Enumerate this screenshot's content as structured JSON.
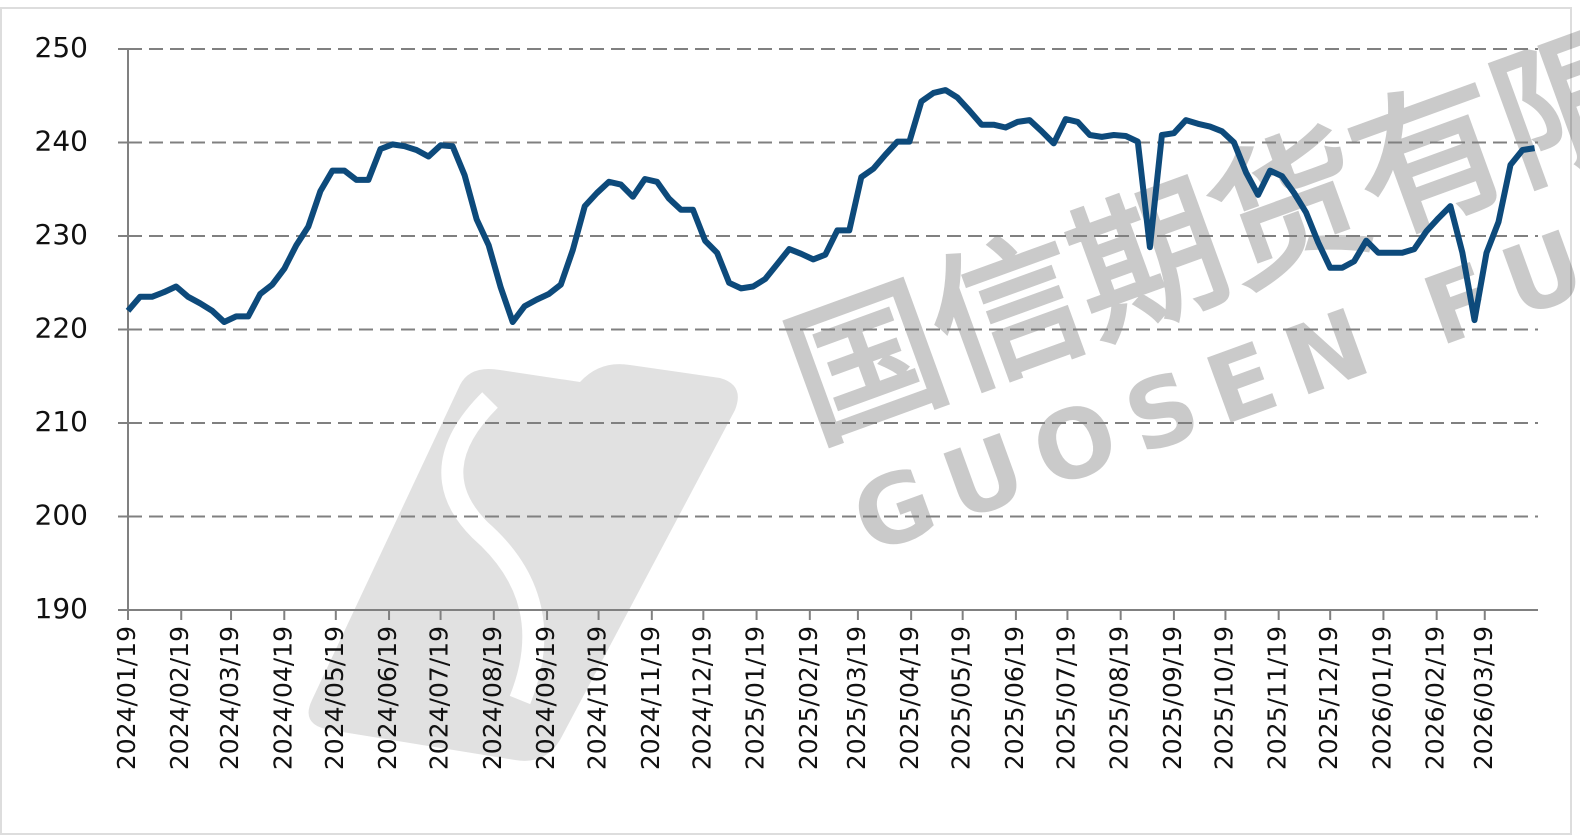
{
  "chart_data": {
    "type": "line",
    "watermark": [
      "国信期货有限",
      "GUOSEN FUTU"
    ],
    "x": [
      "2024/01/19",
      "2024/01/26",
      "2024/02/02",
      "2024/02/09",
      "2024/02/16",
      "2024/02/23",
      "2024/03/01",
      "2024/03/08",
      "2024/03/15",
      "2024/03/22",
      "2024/03/29",
      "2024/04/05",
      "2024/04/12",
      "2024/04/19",
      "2024/04/26",
      "2024/05/03",
      "2024/05/10",
      "2024/05/17",
      "2024/05/24",
      "2024/05/31",
      "2024/06/07",
      "2024/06/14",
      "2024/06/21",
      "2024/06/28",
      "2024/07/05",
      "2024/07/12",
      "2024/07/19",
      "2024/07/26",
      "2024/08/02",
      "2024/08/09",
      "2024/08/16",
      "2024/08/23",
      "2024/08/30",
      "2024/09/06",
      "2024/09/13",
      "2024/09/20",
      "2024/09/27",
      "2024/10/04",
      "2024/10/11",
      "2024/10/18",
      "2024/10/25",
      "2024/11/01",
      "2024/11/08",
      "2024/11/15",
      "2024/11/22",
      "2024/11/29",
      "2024/12/06",
      "2024/12/13",
      "2024/12/20",
      "2024/12/27",
      "2025/01/03",
      "2025/01/10",
      "2025/01/17",
      "2025/01/24",
      "2025/01/31",
      "2025/02/07",
      "2025/02/14",
      "2025/02/21",
      "2025/02/28",
      "2025/03/07",
      "2025/03/14",
      "2025/03/21",
      "2025/03/28",
      "2025/04/04",
      "2025/04/11",
      "2025/04/18",
      "2025/04/25",
      "2025/05/02",
      "2025/05/09",
      "2025/05/16",
      "2025/05/23",
      "2025/05/30",
      "2025/06/06",
      "2025/06/13",
      "2025/06/20",
      "2025/06/27",
      "2025/07/04",
      "2025/07/11",
      "2025/07/18",
      "2025/07/25",
      "2025/08/01",
      "2025/08/08",
      "2025/08/15",
      "2025/08/22",
      "2025/08/29",
      "2025/09/05",
      "2025/09/12",
      "2025/09/19",
      "2025/09/26",
      "2025/10/03",
      "2025/10/10",
      "2025/10/17",
      "2025/10/24",
      "2025/10/31",
      "2025/11/07",
      "2025/11/14",
      "2025/11/21",
      "2025/11/28",
      "2025/12/05",
      "2025/12/12",
      "2025/12/19",
      "2025/12/26",
      "2026/01/02",
      "2026/01/09",
      "2026/01/16",
      "2026/01/23",
      "2026/01/30",
      "2026/02/06",
      "2026/02/13",
      "2026/02/20",
      "2026/02/27",
      "2026/03/06",
      "2026/03/13",
      "2026/03/20",
      "2026/03/27",
      "2026/04/03",
      "2026/04/10",
      "2026/04/17"
    ],
    "series": [
      {
        "name": null,
        "color": "#0d4a7b",
        "values": [
          222,
          223.5,
          223.5,
          224,
          224.6,
          223.5,
          222.8,
          222,
          220.8,
          221.4,
          221.4,
          223.8,
          224.8,
          226.5,
          229,
          231,
          234.8,
          237,
          237,
          236,
          236,
          239.3,
          239.8,
          239.6,
          239.2,
          238.5,
          239.7,
          239.6,
          236.5,
          231.8,
          229,
          224.5,
          220.8,
          222.5,
          223.2,
          223.8,
          224.8,
          228.5,
          233.2,
          234.6,
          235.8,
          235.5,
          234.2,
          236.1,
          235.8,
          234,
          232.8,
          232.8,
          229.5,
          228.2,
          225,
          224.4,
          224.6,
          225.4,
          227,
          228.6,
          228.1,
          227.5,
          228,
          230.6,
          230.6,
          236.3,
          237.2,
          238.7,
          240.1,
          240.1,
          244.4,
          245.3,
          245.6,
          244.8,
          243.4,
          241.9,
          241.9,
          241.6,
          242.2,
          242.4,
          241.2,
          239.9,
          242.5,
          242.2,
          240.8,
          240.6,
          240.8,
          240.7,
          240.1,
          228.8,
          240.8,
          241,
          242.4,
          242,
          241.7,
          241.2,
          240,
          236.8,
          234.4,
          237,
          236.4,
          234.6,
          232.5,
          229.3,
          226.6,
          226.6,
          227.3,
          229.5,
          228.2,
          228.2,
          228.2,
          228.6,
          230.5,
          231.9,
          233.2,
          228.2,
          221,
          228.2,
          231.5,
          237.6,
          239.2,
          239.4
        ]
      }
    ],
    "xlim": [
      "2024/01/19",
      "2026/04/19"
    ],
    "xticks": [
      "2024/01/19",
      "2024/02/19",
      "2024/03/19",
      "2024/04/19",
      "2024/05/19",
      "2024/06/19",
      "2024/07/19",
      "2024/08/19",
      "2024/09/19",
      "2024/10/19",
      "2024/11/19",
      "2024/12/19",
      "2025/01/19",
      "2025/02/19",
      "2025/03/19",
      "2025/04/19",
      "2025/05/19",
      "2025/06/19",
      "2025/07/19",
      "2025/08/19",
      "2025/09/19",
      "2025/10/19",
      "2025/11/19",
      "2025/12/19",
      "2026/01/19",
      "2026/02/19",
      "2026/03/19"
    ],
    "ylim": [
      190,
      250
    ],
    "yticks": [
      190,
      200,
      210,
      220,
      230,
      240,
      250
    ],
    "grid": true
  }
}
